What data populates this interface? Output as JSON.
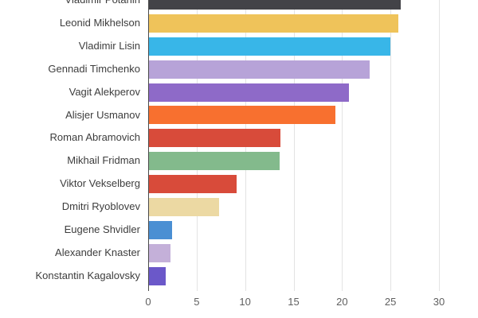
{
  "chart_data": {
    "type": "bar",
    "orientation": "horizontal",
    "title": "",
    "xlabel": "",
    "ylabel": "",
    "grid": true,
    "legend_position": "none",
    "xlim": [
      0,
      30
    ],
    "xticks": [
      0,
      5,
      10,
      15,
      20,
      25,
      30
    ],
    "categories": [
      "Vladimir Potanin",
      "Leonid Mikhelson",
      "Vladimir Lisin",
      "Gennadi Timchenko",
      "Vagit Alekperov",
      "Alisjer Usmanov",
      "Roman Abramovich",
      "Mikhail Fridman",
      "Viktor Vekselberg",
      "Dmitri Ryoblovev",
      "Eugene Shvidler",
      "Alexander Knaster",
      "Konstantin Kagalovsky"
    ],
    "values": [
      26.0,
      25.7,
      24.9,
      22.8,
      20.6,
      19.2,
      13.6,
      13.5,
      9.0,
      7.2,
      2.4,
      2.2,
      1.7
    ],
    "bar_colors": [
      "#434348",
      "#efc35a",
      "#38b6e8",
      "#b7a3d8",
      "#8e6ac8",
      "#f8702f",
      "#d84b3a",
      "#83ba8c",
      "#d84b3a",
      "#ecd9a3",
      "#4a8fd3",
      "#c4b0d9",
      "#6b58c9"
    ]
  },
  "colors": {
    "background": "#ffffff",
    "gridline": "#e3e3e3",
    "baseline": "#4a4a4a",
    "category_label": "#3d3d3d",
    "tick_label": "#5f5f5f"
  }
}
